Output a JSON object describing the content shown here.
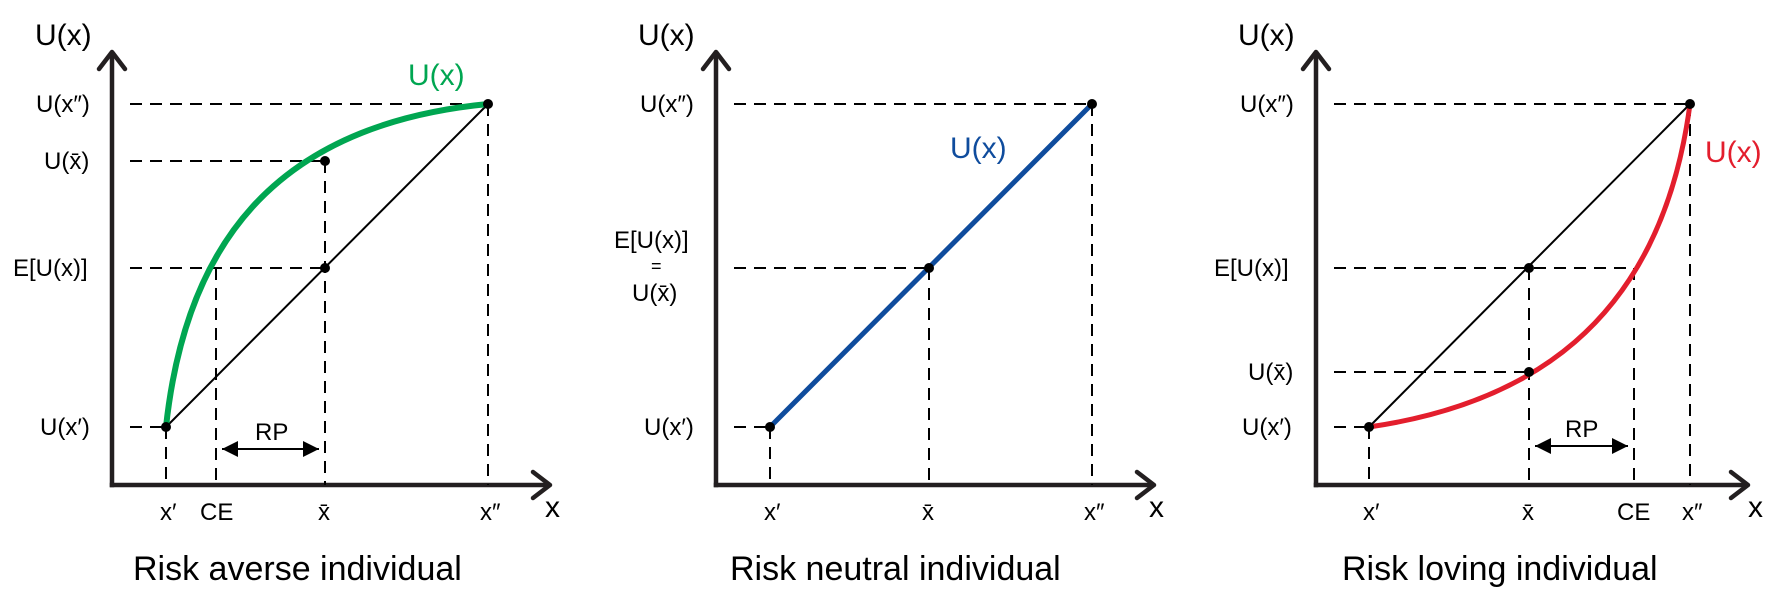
{
  "colors": {
    "risk_averse_curve": "#00a651",
    "risk_neutral_curve": "#0f4c9d",
    "risk_loving_curve": "#e31e2d"
  },
  "panels": [
    {
      "y_axis_label": "U(x)",
      "x_axis_label": "x",
      "curve_label": "U(x)",
      "y_ticks": {
        "u_high": "U(x″)",
        "u_mean": "U(x̄)",
        "eu": "E[U(x)]",
        "u_low": "U(x′)"
      },
      "x_ticks": {
        "x_low": "x′",
        "ce": "CE",
        "x_mean": "x̄",
        "x_high": "x″"
      },
      "rp_label": "RP",
      "caption": "Risk averse individual"
    },
    {
      "y_axis_label": "U(x)",
      "x_axis_label": "x",
      "curve_label": "U(x)",
      "y_ticks": {
        "u_high": "U(x″)",
        "eu_line1": "E[U(x)]",
        "equals": "=",
        "u_mean": "U(x̄)",
        "u_low": "U(x′)"
      },
      "x_ticks": {
        "x_low": "x′",
        "x_mean": "x̄",
        "x_high": "x″"
      },
      "caption": "Risk neutral individual"
    },
    {
      "y_axis_label": "U(x)",
      "x_axis_label": "x",
      "curve_label": "U(x)",
      "y_ticks": {
        "u_high": "U(x″)",
        "eu": "E[U(x)]",
        "u_mean": "U(x̄)",
        "u_low": "U(x′)"
      },
      "x_ticks": {
        "x_low": "x′",
        "x_mean": "x̄",
        "ce": "CE",
        "x_high": "x″"
      },
      "rp_label": "RP",
      "caption": "Risk loving individual"
    }
  ]
}
